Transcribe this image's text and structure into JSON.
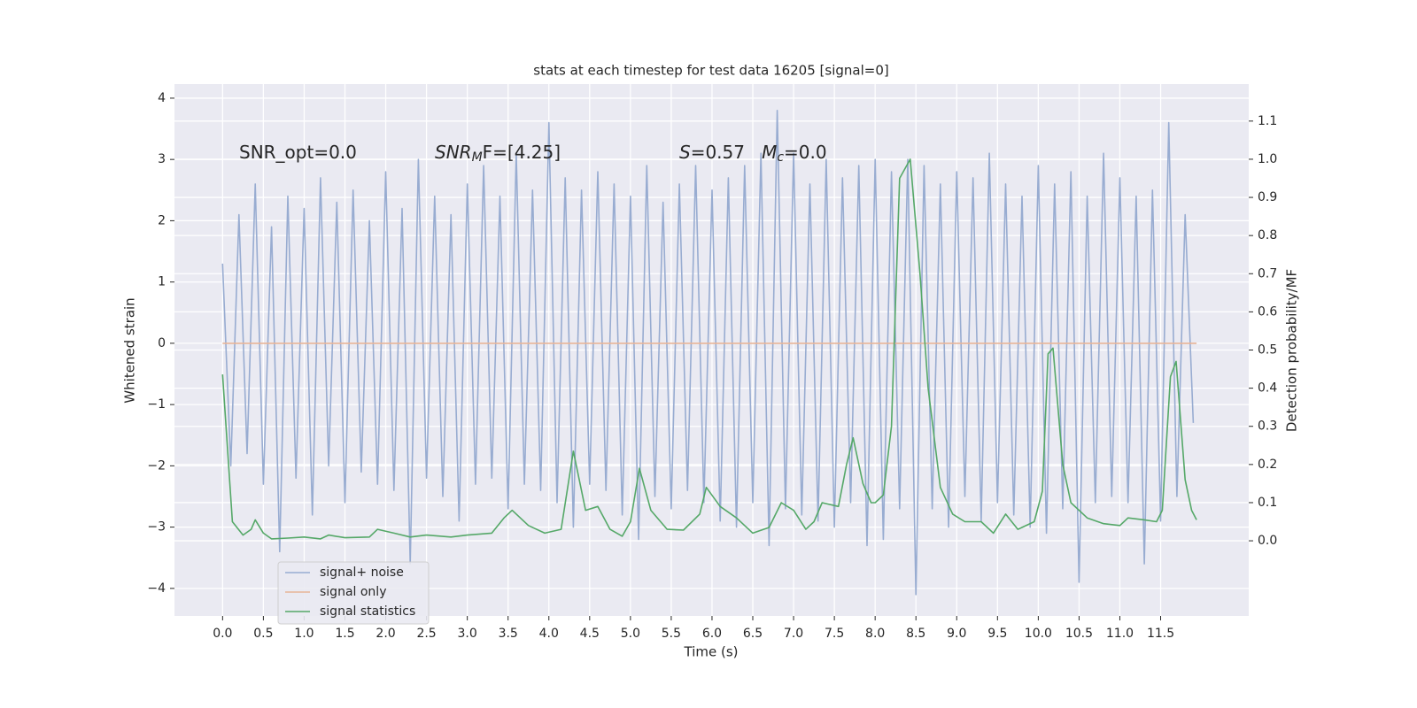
{
  "chart_data": {
    "type": "line",
    "title": "stats at each timestep for test data 16205 [signal=0]",
    "xlabel": "Time (s)",
    "ylabel": "Whitened strain",
    "y2label": "Detection probability/MF",
    "xlim": [
      -0.59,
      12.58
    ],
    "ylim": [
      -4.45,
      4.23
    ],
    "y2lim": [
      -0.197,
      1.197
    ],
    "xticks": [
      {
        "value": 0,
        "label": "0.0"
      },
      0.5,
      {
        "value": 1,
        "label": "1.0"
      },
      1.5,
      {
        "value": 2,
        "label": "2.0"
      },
      2.5,
      {
        "value": 3,
        "label": "3.0"
      },
      3.5,
      {
        "value": 4,
        "label": "4.0"
      },
      4.5,
      {
        "value": 5,
        "label": "5.0"
      },
      5.5,
      {
        "value": 6,
        "label": "6.0"
      },
      6.5,
      {
        "value": 7,
        "label": "7.0"
      },
      7.5,
      {
        "value": 8,
        "label": "8.0"
      },
      8.5,
      {
        "value": 9,
        "label": "9.0"
      },
      9.5,
      {
        "value": 10,
        "label": "10.0"
      },
      10.5,
      {
        "value": 11,
        "label": "11.0"
      },
      11.5
    ],
    "yticks": [
      {
        "value": -4,
        "label": "−4"
      },
      {
        "value": -3,
        "label": "−3"
      },
      {
        "value": -2,
        "label": "−2"
      },
      {
        "value": -1,
        "label": "−1"
      },
      0,
      1,
      2,
      3,
      4
    ],
    "y2ticks": [
      {
        "value": 0,
        "label": "0.0"
      },
      0.1,
      0.2,
      0.3,
      0.4,
      0.5,
      0.6,
      0.7,
      0.8,
      0.9,
      {
        "value": 1,
        "label": "1.0"
      },
      1.1
    ],
    "grid": true,
    "legend": "lower left",
    "series": [
      {
        "name": "signal+ noise",
        "color": "#98acd1",
        "x": [
          0,
          0.1,
          0.2,
          0.3,
          0.4,
          0.5,
          0.6,
          0.7,
          0.8,
          0.9,
          1,
          1.1,
          1.2,
          1.3,
          1.4,
          1.5,
          1.6,
          1.7,
          1.8,
          1.9,
          2,
          2.1,
          2.2,
          2.3,
          2.4,
          2.5,
          2.6,
          2.7,
          2.8,
          2.9,
          3,
          3.1,
          3.2,
          3.3,
          3.4,
          3.5,
          3.6,
          3.7,
          3.8,
          3.9,
          4,
          4.1,
          4.2,
          4.3,
          4.4,
          4.5,
          4.6,
          4.7,
          4.8,
          4.9,
          5,
          5.1,
          5.2,
          5.3,
          5.4,
          5.5,
          5.6,
          5.7,
          5.8,
          5.9,
          6,
          6.1,
          6.2,
          6.3,
          6.4,
          6.5,
          6.6,
          6.7,
          6.8,
          6.9,
          7,
          7.1,
          7.2,
          7.3,
          7.4,
          7.5,
          7.6,
          7.7,
          7.8,
          7.9,
          8,
          8.1,
          8.2,
          8.3,
          8.4,
          8.5,
          8.6,
          8.7,
          8.8,
          8.9,
          9,
          9.1,
          9.2,
          9.3,
          9.4,
          9.5,
          9.6,
          9.7,
          9.8,
          9.9,
          10,
          10.1,
          10.2,
          10.3,
          10.4,
          10.5,
          10.6,
          10.7,
          10.8,
          10.9,
          11,
          11.1,
          11.2,
          11.3,
          11.4,
          11.5,
          11.6,
          11.7,
          11.8,
          11.9
        ],
        "values": [
          1.3,
          -2.0,
          2.1,
          -1.8,
          2.6,
          -2.3,
          1.9,
          -3.4,
          2.4,
          -2.2,
          2.2,
          -2.8,
          2.7,
          -2.0,
          2.3,
          -2.6,
          2.5,
          -2.1,
          2.0,
          -2.3,
          2.8,
          -2.4,
          2.2,
          -3.6,
          3.0,
          -2.2,
          2.4,
          -2.5,
          2.1,
          -2.9,
          2.6,
          -2.3,
          2.9,
          -2.2,
          2.4,
          -2.7,
          3.1,
          -2.3,
          2.5,
          -2.4,
          3.6,
          -2.6,
          2.7,
          -3.0,
          2.5,
          -2.3,
          2.8,
          -2.4,
          2.6,
          -2.8,
          2.4,
          -3.2,
          2.9,
          -2.5,
          2.3,
          -2.7,
          2.6,
          -2.4,
          2.9,
          -2.6,
          2.5,
          -2.9,
          2.7,
          -3.0,
          2.9,
          -2.6,
          3.1,
          -3.3,
          3.8,
          -2.7,
          3.1,
          -2.8,
          2.6,
          -2.9,
          3.0,
          -3.0,
          2.7,
          -2.6,
          2.9,
          -3.3,
          3.0,
          -3.2,
          2.8,
          -2.7,
          3.0,
          -4.1,
          2.9,
          -2.7,
          2.6,
          -3.0,
          2.8,
          -2.5,
          2.7,
          -2.9,
          3.1,
          -2.6,
          2.6,
          -2.8,
          2.4,
          -3.0,
          2.9,
          -3.1,
          2.6,
          -2.7,
          2.8,
          -3.9,
          2.4,
          -2.6,
          3.1,
          -2.5,
          2.7,
          -2.6,
          2.4,
          -3.6,
          2.5,
          -2.9,
          3.6,
          -2.5,
          2.1,
          -1.3
        ]
      },
      {
        "name": "signal only",
        "color": "#e8b598",
        "x": [
          0,
          11.94
        ],
        "values": [
          0,
          0
        ]
      },
      {
        "name": "signal statistics",
        "color": "#55a868",
        "axis": "y2",
        "x": [
          0,
          0.12,
          0.25,
          0.35,
          0.4,
          0.5,
          0.6,
          0.8,
          1,
          1.2,
          1.3,
          1.5,
          1.8,
          1.9,
          2.1,
          2.3,
          2.5,
          2.8,
          3,
          3.3,
          3.45,
          3.55,
          3.75,
          3.95,
          4.15,
          4.3,
          4.45,
          4.6,
          4.75,
          4.9,
          5.0,
          5.11,
          5.25,
          5.45,
          5.65,
          5.85,
          5.93,
          6.1,
          6.3,
          6.5,
          6.7,
          6.85,
          7.0,
          7.15,
          7.25,
          7.35,
          7.55,
          7.65,
          7.73,
          7.85,
          7.95,
          8.0,
          8.1,
          8.2,
          8.3,
          8.43,
          8.55,
          8.65,
          8.8,
          8.95,
          9.1,
          9.3,
          9.45,
          9.6,
          9.75,
          9.95,
          10.05,
          10.12,
          10.18,
          10.3,
          10.4,
          10.6,
          10.8,
          11.0,
          11.1,
          11.3,
          11.45,
          11.52,
          11.62,
          11.69,
          11.8,
          11.88,
          11.94
        ],
        "values": [
          0.436,
          0.05,
          0.015,
          0.03,
          0.055,
          0.02,
          0.005,
          0.007,
          0.01,
          0.005,
          0.015,
          0.008,
          0.01,
          0.03,
          0.02,
          0.01,
          0.015,
          0.01,
          0.015,
          0.02,
          0.06,
          0.08,
          0.04,
          0.02,
          0.03,
          0.235,
          0.08,
          0.09,
          0.03,
          0.012,
          0.05,
          0.19,
          0.08,
          0.03,
          0.028,
          0.07,
          0.14,
          0.09,
          0.06,
          0.02,
          0.035,
          0.1,
          0.08,
          0.03,
          0.05,
          0.1,
          0.09,
          0.2,
          0.27,
          0.15,
          0.1,
          0.1,
          0.12,
          0.3,
          0.95,
          1.0,
          0.7,
          0.4,
          0.14,
          0.07,
          0.05,
          0.05,
          0.02,
          0.07,
          0.03,
          0.05,
          0.13,
          0.49,
          0.505,
          0.2,
          0.1,
          0.06,
          0.045,
          0.04,
          0.06,
          0.055,
          0.05,
          0.08,
          0.43,
          0.47,
          0.16,
          0.08,
          0.055
        ]
      }
    ],
    "annotations": [
      {
        "parts": [
          {
            "text": "SNR_opt=0.0"
          }
        ]
      },
      {
        "parts": [
          {
            "text": "SNR",
            "style": "italic"
          },
          {
            "text": "M",
            "style": "italic-sub"
          },
          {
            "text": "F=[4.25]"
          }
        ]
      },
      {
        "parts": [
          {
            "text": "S",
            "style": "italic"
          },
          {
            "text": "=0.57   "
          },
          {
            "text": "M",
            "style": "italic"
          },
          {
            "text": "c",
            "style": "italic-sub"
          },
          {
            "text": "=0.0"
          }
        ]
      }
    ]
  }
}
